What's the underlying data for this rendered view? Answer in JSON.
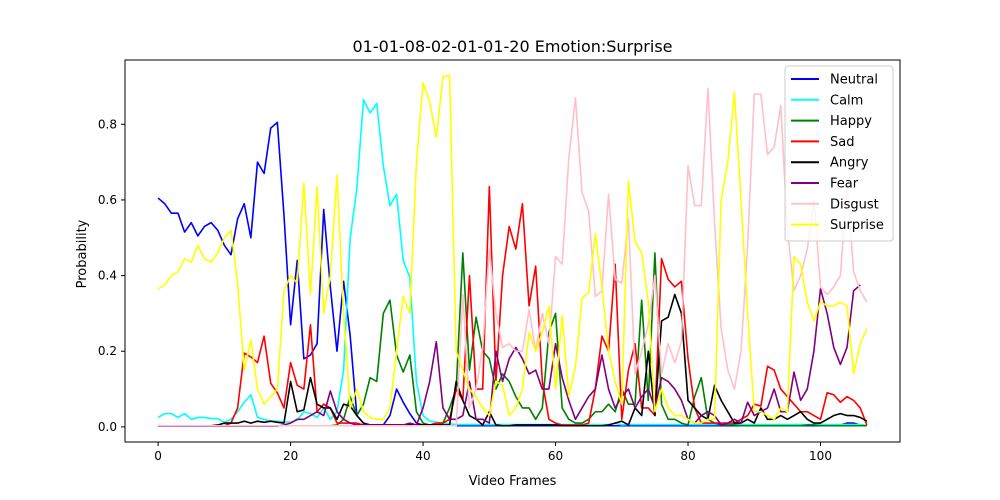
{
  "chart_data": {
    "type": "line",
    "title": "01-01-08-02-01-01-20 Emotion:Surprise",
    "xlabel": "Video Frames",
    "ylabel": "Probability",
    "xlim": [
      -5,
      112
    ],
    "ylim": [
      -0.04,
      0.97
    ],
    "x_ticks": [
      0,
      20,
      40,
      60,
      80,
      100
    ],
    "y_ticks": [
      0.0,
      0.2,
      0.4,
      0.6,
      0.8
    ],
    "x_tick_labels": [
      "0",
      "20",
      "40",
      "60",
      "80",
      "100"
    ],
    "y_tick_labels": [
      "0.0",
      "0.2",
      "0.4",
      "0.6",
      "0.8"
    ],
    "grid": false,
    "legend_position": "top-right",
    "series": [
      {
        "name": "Neutral",
        "color": "#0000ff",
        "values": [
          0.605,
          0.59,
          0.565,
          0.565,
          0.515,
          0.54,
          0.505,
          0.53,
          0.54,
          0.52,
          0.48,
          0.455,
          0.55,
          0.59,
          0.5,
          0.7,
          0.67,
          0.79,
          0.805,
          0.56,
          0.27,
          0.44,
          0.18,
          0.19,
          0.22,
          0.575,
          0.37,
          0.2,
          0.385,
          0.24,
          0.03,
          0.01,
          0.005,
          0.005,
          0.005,
          0.03,
          0.1,
          0.065,
          0.035,
          0.01,
          0.005,
          0.003,
          0.003,
          0.003,
          0.003,
          0.003,
          0.003,
          0.003,
          0.003,
          0.003,
          0.003,
          0.003,
          0.003,
          0.003,
          0.003,
          0.003,
          0.003,
          0.003,
          0.003,
          0.003,
          0.003,
          0.003,
          0.003,
          0.003,
          0.003,
          0.003,
          0.003,
          0.003,
          0.003,
          0.003,
          0.003,
          0.003,
          0.003,
          0.003,
          0.003,
          0.003,
          0.003,
          0.003,
          0.003,
          0.003,
          0.003,
          0.003,
          0.003,
          0.003,
          0.003,
          0.003,
          0.003,
          0.003,
          0.003,
          0.003,
          0.003,
          0.003,
          0.003,
          0.003,
          0.003,
          0.003,
          0.003,
          0.003,
          0.003,
          0.003,
          0.003,
          0.003,
          0.003,
          0.005,
          0.01,
          0.01,
          0.005,
          0.003
        ]
      },
      {
        "name": "Calm",
        "color": "#00ffff",
        "values": [
          0.025,
          0.035,
          0.035,
          0.025,
          0.035,
          0.02,
          0.025,
          0.025,
          0.022,
          0.022,
          0.012,
          0.02,
          0.04,
          0.065,
          0.085,
          0.025,
          0.02,
          0.015,
          0.015,
          0.013,
          0.012,
          0.018,
          0.04,
          0.035,
          0.025,
          0.05,
          0.02,
          0.04,
          0.15,
          0.5,
          0.63,
          0.865,
          0.83,
          0.855,
          0.69,
          0.585,
          0.615,
          0.44,
          0.395,
          0.12,
          0.03,
          0.015,
          0.012,
          0.01,
          0.008,
          0.006,
          0.006,
          0.006,
          0.006,
          0.006,
          0.006,
          0.006,
          0.006,
          0.006,
          0.006,
          0.006,
          0.006,
          0.006,
          0.006,
          0.006,
          0.006,
          0.006,
          0.006,
          0.006,
          0.006,
          0.006,
          0.006,
          0.006,
          0.006,
          0.01,
          0.005,
          0.006,
          0.006,
          0.006,
          0.006,
          0.006,
          0.006,
          0.006,
          0.006,
          0.006,
          0.006,
          0.006,
          0.006,
          0.006,
          0.006,
          0.006,
          0.006,
          0.006,
          0.006,
          0.006,
          0.006,
          0.006,
          0.006,
          0.006,
          0.006,
          0.006,
          0.006,
          0.006,
          0.006,
          0.006,
          0.006,
          0.006,
          0.006,
          0.006,
          0.006,
          0.006,
          0.006,
          0.004
        ]
      },
      {
        "name": "Happy",
        "color": "#008000",
        "values": [
          0.003,
          0.003,
          0.003,
          0.003,
          0.003,
          0.003,
          0.003,
          0.003,
          0.003,
          0.003,
          0.003,
          0.003,
          0.003,
          0.003,
          0.003,
          0.003,
          0.003,
          0.003,
          0.003,
          0.003,
          0.003,
          0.003,
          0.003,
          0.003,
          0.003,
          0.003,
          0.003,
          0.005,
          0.02,
          0.08,
          0.03,
          0.06,
          0.13,
          0.12,
          0.3,
          0.335,
          0.19,
          0.145,
          0.19,
          0.04,
          0.01,
          0.005,
          0.005,
          0.01,
          0.05,
          0.1,
          0.46,
          0.15,
          0.29,
          0.2,
          0.18,
          0.1,
          0.14,
          0.12,
          0.08,
          0.05,
          0.05,
          0.02,
          0.05,
          0.25,
          0.3,
          0.05,
          0.02,
          0.01,
          0.01,
          0.02,
          0.04,
          0.04,
          0.06,
          0.04,
          0.1,
          0.06,
          0.06,
          0.335,
          0.07,
          0.46,
          0.06,
          0.02,
          0.02,
          0.01,
          0.005,
          0.08,
          0.13,
          0.02,
          0.01,
          0.005,
          0.005,
          0.005,
          0.003,
          0.003,
          0.003,
          0.003,
          0.003,
          0.003,
          0.003,
          0.003,
          0.003,
          0.003,
          0.005,
          0.005,
          0.003,
          0.003,
          0.003,
          0.003,
          0.003,
          0.003,
          0.003,
          0.003
        ]
      },
      {
        "name": "Sad",
        "color": "#ff0000",
        "values": [
          0.003,
          0.003,
          0.003,
          0.003,
          0.003,
          0.003,
          0.003,
          0.003,
          0.003,
          0.003,
          0.003,
          0.01,
          0.05,
          0.195,
          0.185,
          0.17,
          0.24,
          0.115,
          0.09,
          0.05,
          0.17,
          0.11,
          0.1,
          0.27,
          0.04,
          0.06,
          0.05,
          0.01,
          0.01,
          0.01,
          0.01,
          0.005,
          0.005,
          0.005,
          0.005,
          0.005,
          0.005,
          0.005,
          0.005,
          0.005,
          0.005,
          0.005,
          0.01,
          0.01,
          0.02,
          0.1,
          0.07,
          0.4,
          0.1,
          0.1,
          0.635,
          0.12,
          0.4,
          0.53,
          0.47,
          0.59,
          0.32,
          0.425,
          0.12,
          0.02,
          0.01,
          0.005,
          0.005,
          0.005,
          0.005,
          0.01,
          0.1,
          0.24,
          0.2,
          0.43,
          0.02,
          0.15,
          0.22,
          0.05,
          0.05,
          0.03,
          0.445,
          0.39,
          0.37,
          0.385,
          0.18,
          0.05,
          0.01,
          0.01,
          0.01,
          0.01,
          0.01,
          0.01,
          0.02,
          0.03,
          0.06,
          0.055,
          0.16,
          0.15,
          0.1,
          0.08,
          0.06,
          0.04,
          0.04,
          0.03,
          0.02,
          0.09,
          0.085,
          0.065,
          0.08,
          0.07,
          0.05,
          0.005
        ]
      },
      {
        "name": "Angry",
        "color": "#000000",
        "values": [
          0.003,
          0.003,
          0.003,
          0.003,
          0.003,
          0.003,
          0.003,
          0.003,
          0.003,
          0.005,
          0.01,
          0.01,
          0.01,
          0.015,
          0.01,
          0.015,
          0.012,
          0.015,
          0.012,
          0.01,
          0.12,
          0.04,
          0.045,
          0.13,
          0.06,
          0.05,
          0.05,
          0.02,
          0.06,
          0.055,
          0.03,
          0.01,
          0.005,
          0.005,
          0.005,
          0.005,
          0.005,
          0.005,
          0.005,
          0.005,
          0.005,
          0.005,
          0.005,
          0.005,
          0.005,
          0.12,
          0.07,
          0.03,
          0.02,
          0.005,
          0.04,
          0.005,
          0.003,
          0.003,
          0.005,
          0.005,
          0.005,
          0.005,
          0.005,
          0.005,
          0.005,
          0.003,
          0.003,
          0.003,
          0.003,
          0.003,
          0.003,
          0.003,
          0.005,
          0.01,
          0.015,
          0.005,
          0.05,
          0.03,
          0.2,
          0.03,
          0.28,
          0.29,
          0.35,
          0.3,
          0.07,
          0.05,
          0.03,
          0.02,
          0.11,
          0.07,
          0.04,
          0.01,
          0.01,
          0.02,
          0.01,
          0.05,
          0.02,
          0.02,
          0.03,
          0.02,
          0.03,
          0.04,
          0.02,
          0.01,
          0.01,
          0.02,
          0.03,
          0.035,
          0.03,
          0.03,
          0.025,
          0.015
        ]
      },
      {
        "name": "Fear",
        "color": "#800080",
        "values": [
          0.002,
          0.002,
          0.002,
          0.002,
          0.002,
          0.002,
          0.002,
          0.002,
          0.002,
          0.002,
          0.002,
          0.002,
          0.002,
          0.002,
          0.002,
          0.002,
          0.002,
          0.002,
          0.002,
          0.005,
          0.01,
          0.02,
          0.02,
          0.03,
          0.04,
          0.03,
          0.095,
          0.04,
          0.02,
          0.01,
          0.005,
          0.005,
          0.005,
          0.005,
          0.005,
          0.005,
          0.005,
          0.005,
          0.01,
          0.005,
          0.05,
          0.12,
          0.225,
          0.05,
          0.02,
          0.02,
          0.03,
          0.12,
          0.02,
          0.02,
          0.01,
          0.2,
          0.12,
          0.18,
          0.21,
          0.18,
          0.14,
          0.15,
          0.1,
          0.1,
          0.22,
          0.13,
          0.07,
          0.02,
          0.05,
          0.08,
          0.1,
          0.19,
          0.1,
          0.05,
          0.08,
          0.1,
          0.05,
          0.08,
          0.1,
          0.05,
          0.13,
          0.12,
          0.1,
          0.07,
          0.02,
          0.01,
          0.03,
          0.04,
          0.03,
          0.005,
          0.01,
          0.02,
          0.01,
          0.065,
          0.03,
          0.04,
          0.05,
          0.1,
          0.04,
          0.04,
          0.145,
          0.07,
          0.1,
          0.2,
          0.365,
          0.3,
          0.21,
          0.165,
          0.21,
          0.36,
          0.375
        ]
      },
      {
        "name": "Disgust",
        "color": "#ffc0cb",
        "values": [
          0.003,
          0.003,
          0.003,
          0.003,
          0.003,
          0.003,
          0.003,
          0.003,
          0.003,
          0.003,
          0.003,
          0.003,
          0.003,
          0.003,
          0.003,
          0.003,
          0.003,
          0.003,
          0.003,
          0.003,
          0.003,
          0.003,
          0.003,
          0.003,
          0.003,
          0.003,
          0.003,
          0.003,
          0.003,
          0.003,
          0.003,
          0.003,
          0.003,
          0.003,
          0.003,
          0.003,
          0.003,
          0.003,
          0.003,
          0.003,
          0.003,
          0.003,
          0.003,
          0.003,
          0.003,
          0.003,
          0.35,
          0.05,
          0.1,
          0.21,
          0.47,
          0.3,
          0.21,
          0.22,
          0.2,
          0.2,
          0.31,
          0.2,
          0.3,
          0.22,
          0.45,
          0.43,
          0.71,
          0.87,
          0.62,
          0.57,
          0.345,
          0.36,
          0.615,
          0.39,
          0.38,
          0.55,
          0.14,
          0.2,
          0.27,
          0.4,
          0.14,
          0.22,
          0.17,
          0.225,
          0.69,
          0.585,
          0.585,
          0.895,
          0.54,
          0.26,
          0.15,
          0.1,
          0.2,
          0.48,
          0.88,
          0.88,
          0.72,
          0.74,
          0.85,
          0.52,
          0.36,
          0.4,
          0.47,
          0.6,
          0.37,
          0.35,
          0.37,
          0.4,
          0.64,
          0.41,
          0.36,
          0.33
        ]
      },
      {
        "name": "Surprise",
        "color": "#ffff00",
        "values": [
          0.365,
          0.375,
          0.4,
          0.41,
          0.445,
          0.435,
          0.48,
          0.445,
          0.435,
          0.46,
          0.5,
          0.52,
          0.38,
          0.15,
          0.23,
          0.1,
          0.06,
          0.08,
          0.1,
          0.36,
          0.4,
          0.38,
          0.645,
          0.35,
          0.635,
          0.3,
          0.4,
          0.665,
          0.3,
          0.05,
          0.1,
          0.04,
          0.025,
          0.02,
          0.02,
          0.05,
          0.2,
          0.345,
          0.3,
          0.7,
          0.91,
          0.86,
          0.765,
          0.925,
          0.93,
          0.2,
          0.15,
          0.1,
          0.08,
          0.05,
          0.03,
          0.12,
          0.11,
          0.03,
          0.05,
          0.1,
          0.25,
          0.2,
          0.25,
          0.32,
          0.1,
          0.295,
          0.08,
          0.16,
          0.34,
          0.355,
          0.51,
          0.37,
          0.2,
          0.12,
          0.06,
          0.65,
          0.49,
          0.46,
          0.33,
          0.04,
          0.1,
          0.05,
          0.03,
          0.03,
          0.02,
          0.01,
          0.01,
          0.02,
          0.02,
          0.6,
          0.7,
          0.885,
          0.6,
          0.3,
          0.04,
          0.04,
          0.03,
          0.02,
          0.05,
          0.04,
          0.45,
          0.43,
          0.33,
          0.28,
          0.33,
          0.32,
          0.32,
          0.33,
          0.32,
          0.14,
          0.22,
          0.26
        ]
      }
    ]
  }
}
